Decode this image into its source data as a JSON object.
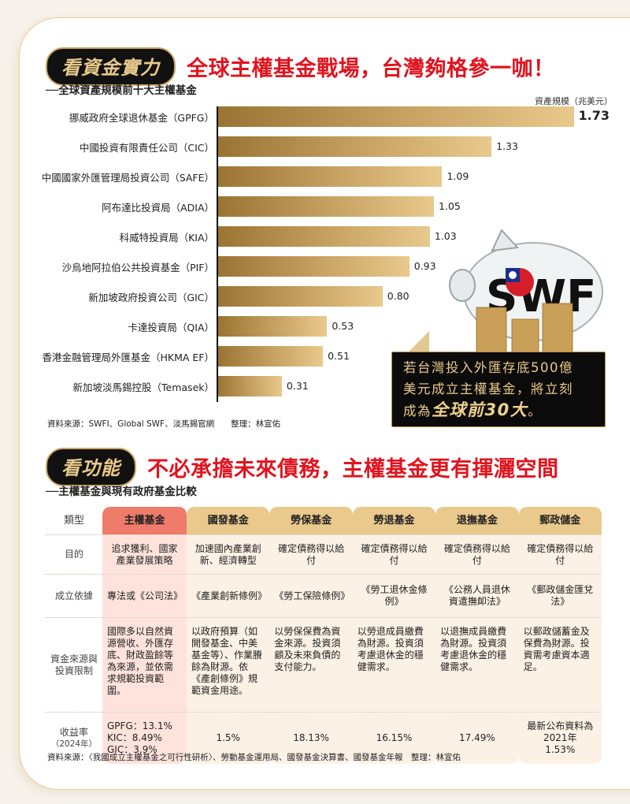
{
  "section1": {
    "pill": "看資金實力",
    "headline": "全球主權基金戰場，台灣夠格參一咖！",
    "subtitle": "──全球資產規模前十大主權基金",
    "unit": "資產規模（兆美元）",
    "source": "資料來源：SWFI、Global SWF、淡馬錫官網　　整理：林宣佑"
  },
  "callout": {
    "line1": "若台灣投入外匯存底500億",
    "line2": "美元成立主權基金，將立刻",
    "line3_prefix": "成為",
    "line3_emphasis": "全球前30大",
    "line3_suffix": "。",
    "illustration_text": "SWF"
  },
  "chart_data": {
    "type": "bar",
    "orientation": "horizontal",
    "title": "全球資產規模前十大主權基金",
    "xlabel": "資產規模（兆美元）",
    "ylabel": "",
    "categories": [
      "挪威政府全球退休基金（GPFG）",
      "中國投資有限責任公司（CIC）",
      "中國國家外匯管理局投資公司（SAFE）",
      "阿布達比投資局（ADIA）",
      "科威特投資局（KIA）",
      "沙烏地阿拉伯公共投資基金（PIF）",
      "新加坡政府投資公司（GIC）",
      "卡達投資局（QIA）",
      "香港金融管理局外匯基金（HKMA EF）",
      "新加坡淡馬錫控股（Temasek）"
    ],
    "values": [
      1.73,
      1.33,
      1.09,
      1.05,
      1.03,
      0.93,
      0.8,
      0.53,
      0.51,
      0.31
    ],
    "value_labels": [
      "1.73",
      "1.33",
      "1.09",
      "1.05",
      "1.03",
      "0.93",
      "0.80",
      "0.53",
      "0.51",
      "0.31"
    ],
    "xlim": [
      0,
      1.8
    ],
    "grid": false,
    "legend": null
  },
  "section2": {
    "pill": "看功能",
    "headline": "不必承擔未來債務，主權基金更有揮灑空間",
    "subtitle": "──主權基金與現有政府基金比較",
    "source": "資料來源：〈我國成立主權基金之可行性研析〉、勞動基金運用局、國發基金決算書、國發基金年報　整理：林宣佑"
  },
  "table": {
    "headers": [
      "類型",
      "主權基金",
      "國發基金",
      "勞保基金",
      "勞退基金",
      "退撫基金",
      "郵政儲金"
    ],
    "rows": [
      {
        "label": "目的",
        "cells": [
          "追求獲利、國家產業發展策略",
          "加速國內產業創新、經濟轉型",
          "確定債務得以給付",
          "確定債務得以給付",
          "確定債務得以給付",
          "確定債務得以給付"
        ]
      },
      {
        "label": "成立依據",
        "cells": [
          "專法或《公司法》",
          "《產業創新條例》",
          "《勞工保險條例》",
          "《勞工退休金條例》",
          "《公務人員退休資遣撫卹法》",
          "《郵政儲金匯兌法》"
        ]
      },
      {
        "label": "資金來源與投資限制",
        "cells": [
          "國際多以自然資源營收、外匯存底、財政盈餘等為來源，並依需求規範投資範圍。",
          "以政府預算（如開發基金、中美基金等）、作業賸餘為財源。依《產創條例》規範資金用途。",
          "以勞保保費為資金來源。投資須顧及未來負債的支付能力。",
          "以勞退成員繳費為財源。投資須考慮退休金的穩健需求。",
          "以退撫成員繳費為財源。投資須考慮退休金的穩健需求。",
          "以郵政儲蓄金及保費為財源。投資需考慮資本適足。"
        ]
      },
      {
        "label": "收益率",
        "label_sub": "（2024年）",
        "cells": [
          "GPFG：13.1%\nKIC：8.49%\nGIC：3.9%",
          "1.5%",
          "18.13%",
          "16.15%",
          "17.49%",
          "最新公布資料為2021年\n1.53%"
        ]
      }
    ]
  },
  "colors": {
    "headline_red": "#e0141e",
    "pill_bg": "#111111",
    "pill_text": "#e8c98a",
    "bar_dark": "#9a7433",
    "bar_light": "#e9c98c",
    "sovereign_header": "#ef7b6a",
    "sovereign_body": "#fde3dc",
    "other_header": "#e9c98c",
    "other_body": "#fcf1e5"
  }
}
